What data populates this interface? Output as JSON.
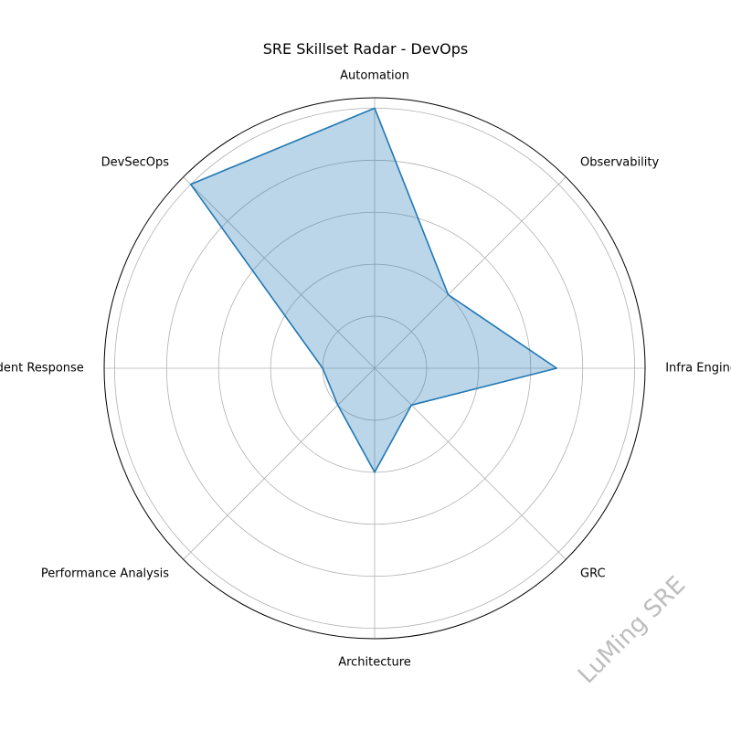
{
  "chart_data": {
    "type": "radar",
    "title": "SRE Skillset Radar - DevOps",
    "categories": [
      "Automation",
      "Observability",
      "Infra Engineering",
      "GRC",
      "Architecture",
      "Performance Analysis",
      "Incident Response",
      "DevSecOps"
    ],
    "series": [
      {
        "values": [
          5.0,
          2.0,
          3.5,
          1.0,
          2.0,
          1.0,
          1.0,
          5.0
        ]
      }
    ],
    "rlim": [
      0,
      5.2
    ],
    "rgrid": [
      1,
      2,
      3,
      4,
      5
    ],
    "grid": true,
    "line_color": "#1f77b4",
    "fill_color": "#1f77b4"
  },
  "watermark": {
    "text": "LuMing SRE",
    "color": "#bdbdbd"
  }
}
